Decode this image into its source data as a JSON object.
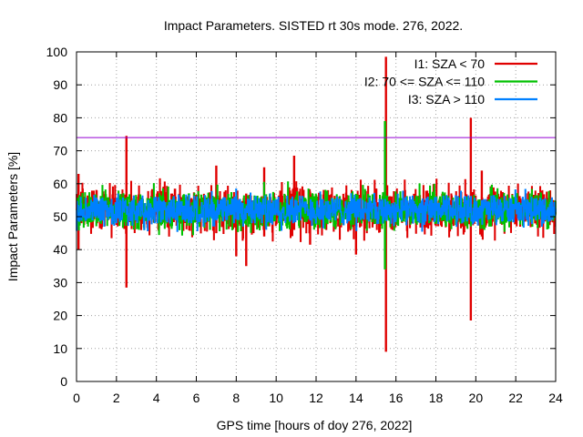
{
  "chart_data": {
    "type": "line",
    "title": "Impact Parameters. SISTED rt 30s mode. 276, 2022.",
    "xlabel": "GPS time [hours of doy 276, 2022]",
    "ylabel": "Impact Parameters [%]",
    "xlim": [
      0,
      24
    ],
    "ylim": [
      0,
      100
    ],
    "xticks": [
      0,
      2,
      4,
      6,
      8,
      10,
      12,
      14,
      16,
      18,
      20,
      22,
      24
    ],
    "yticks": [
      0,
      10,
      20,
      30,
      40,
      50,
      60,
      70,
      80,
      90,
      100
    ],
    "grid": true,
    "threshold": {
      "value": 74,
      "color": "#9400d3"
    },
    "legend_position": "top-right",
    "series": [
      {
        "name": "I1: SZA < 70",
        "color": "#e00000",
        "baseline": 52,
        "typical_range": [
          44,
          60
        ],
        "spikes": [
          {
            "x": 2.5,
            "min": 28.5,
            "max": 74.5
          },
          {
            "x": 15.5,
            "min": 9,
            "max": 98.5
          },
          {
            "x": 19.75,
            "min": 18.5,
            "max": 80
          },
          {
            "x": 10.9,
            "min": 46,
            "max": 68.5
          },
          {
            "x": 7.0,
            "min": 45,
            "max": 65.5
          },
          {
            "x": 9.4,
            "min": 44,
            "max": 65
          },
          {
            "x": 8.5,
            "min": 35,
            "max": 57
          },
          {
            "x": 8.0,
            "min": 38,
            "max": 56
          },
          {
            "x": 0.1,
            "min": 40,
            "max": 63
          },
          {
            "x": 14.0,
            "min": 38.5,
            "max": 56
          },
          {
            "x": 20.3,
            "min": 44,
            "max": 64
          },
          {
            "x": 11.7,
            "min": 41.5,
            "max": 57
          }
        ]
      },
      {
        "name": "I2: 70 <= SZA <= 110",
        "color": "#00c000",
        "baseline": 52,
        "typical_range": [
          46,
          59
        ],
        "spikes": [
          {
            "x": 15.45,
            "min": 34,
            "max": 79
          }
        ]
      },
      {
        "name": "I3: SZA > 110",
        "color": "#0080ff",
        "baseline": 52,
        "typical_range": [
          47,
          57
        ],
        "spikes": []
      }
    ]
  }
}
